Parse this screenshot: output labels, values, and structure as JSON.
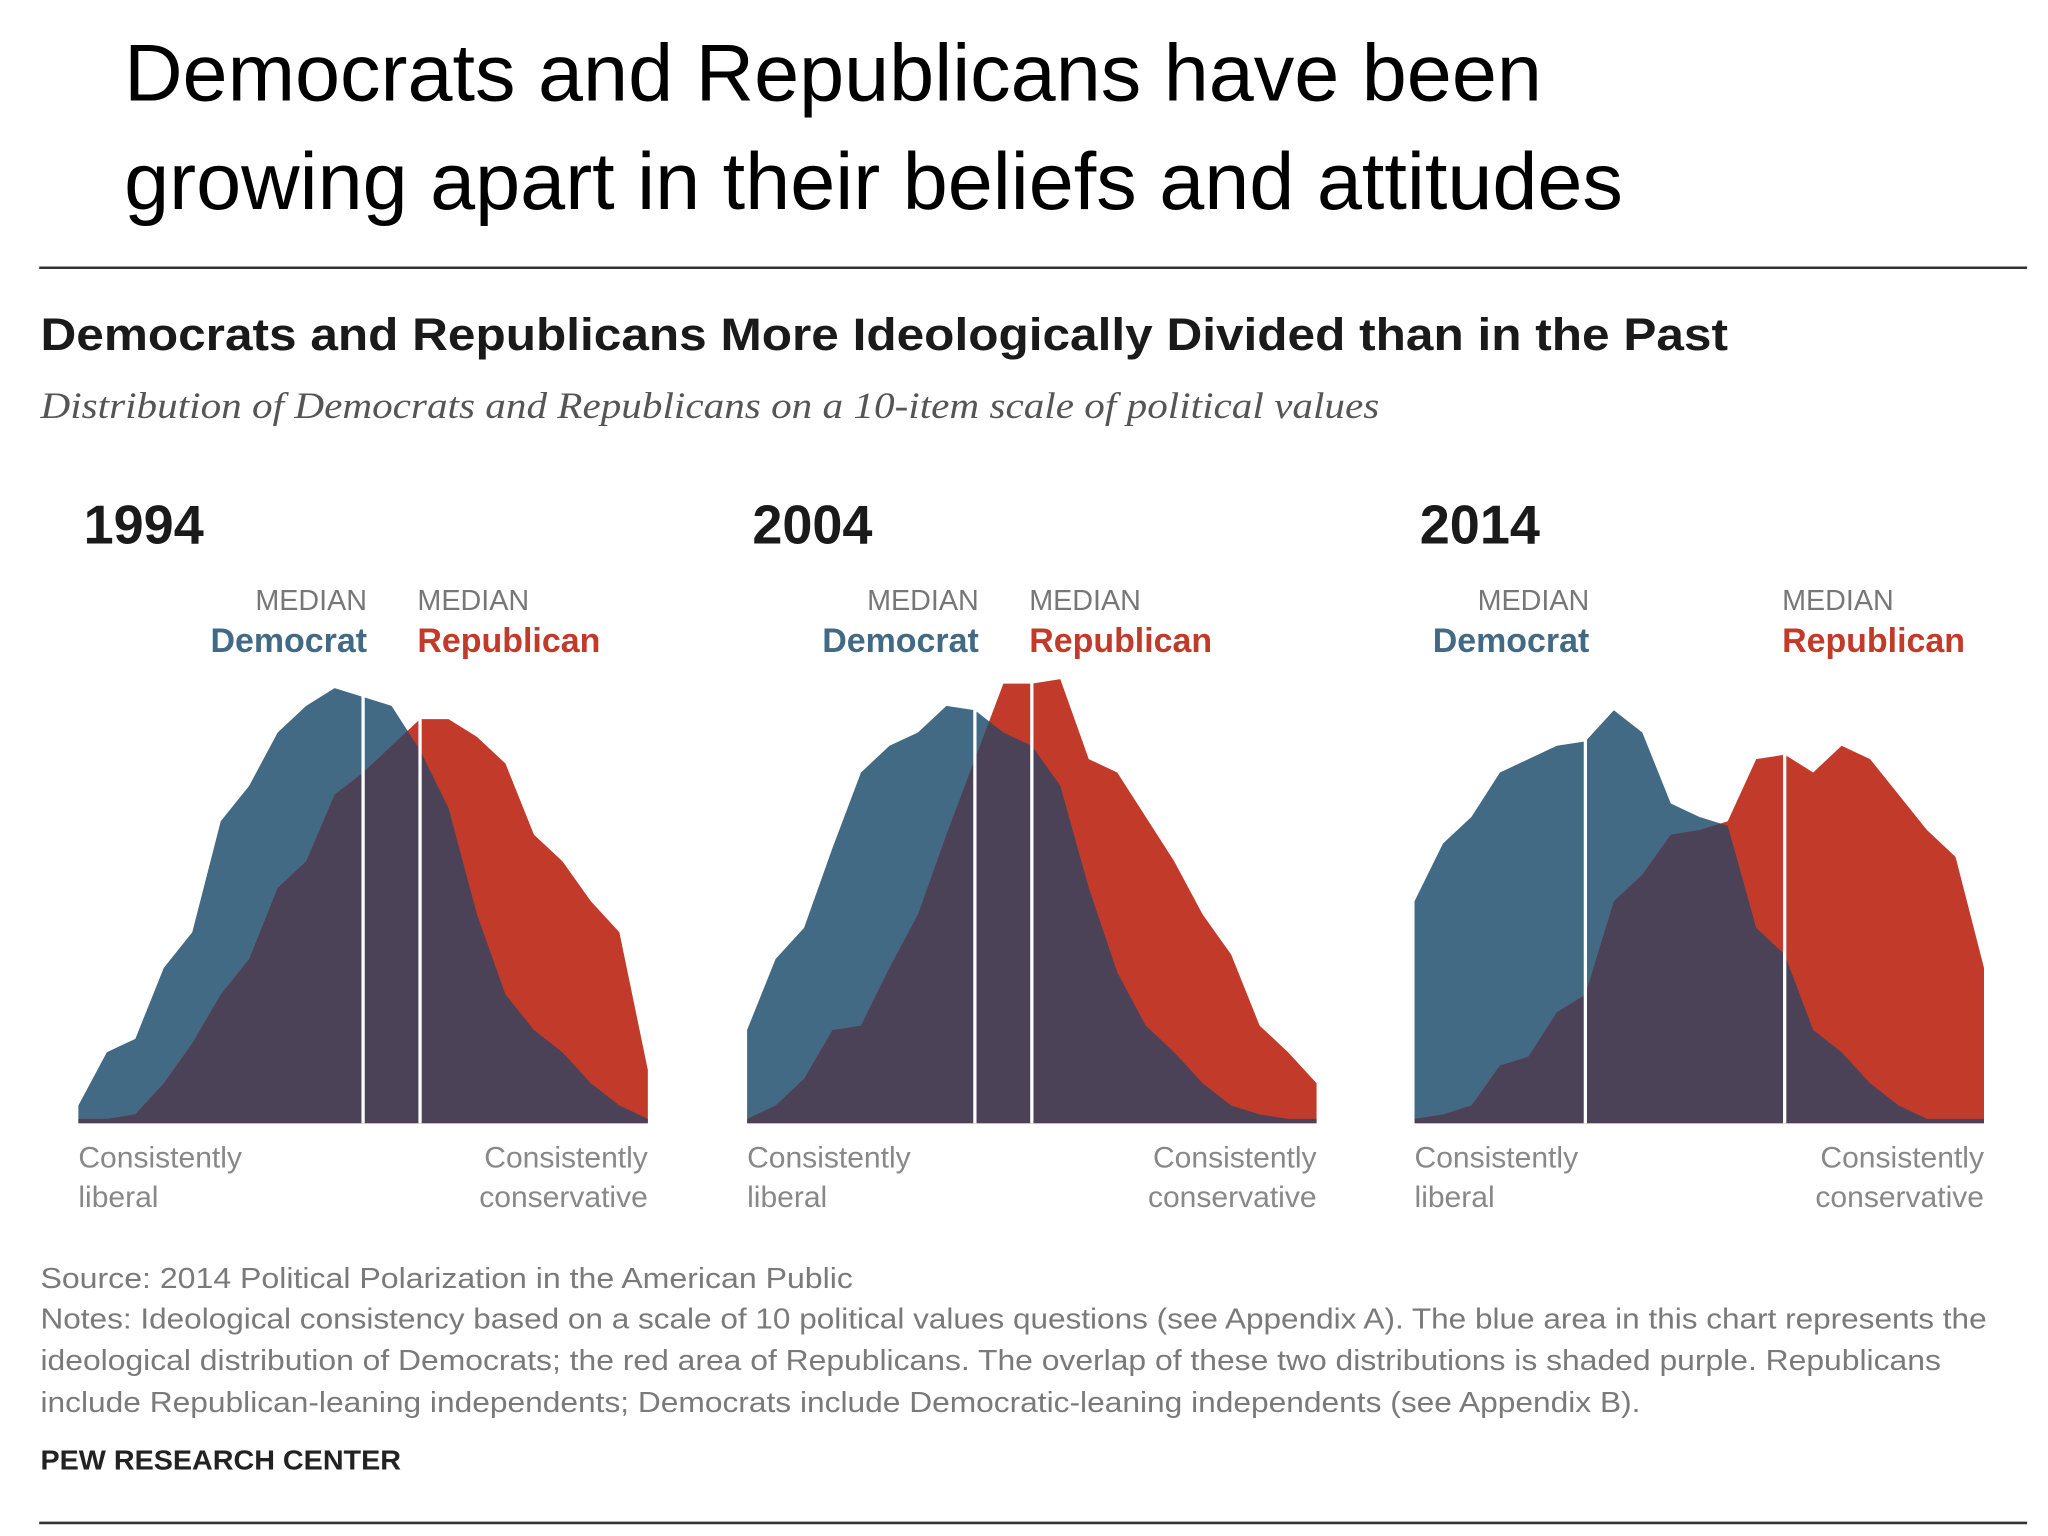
{
  "header": {
    "title": [
      "Democrats and Republicans have been",
      "growing apart in their beliefs and attitudes"
    ],
    "chart_title": "Democrats and Republicans More Ideologically Divided than in the Past",
    "subtitle": "Distribution of Democrats and Republicans on a 10-item scale of political values",
    "source": "Source: 2014 Political Polarization in the American Public",
    "notes": [
      "Notes: Ideological consistency based on a scale of 10 political values questions (see Appendix A). The blue area in this chart represents the",
      "ideological distribution of Democrats; the red area of Republicans. The overlap of these two distributions is shaded purple. Republicans",
      "include Republican-leaning independents; Democrats include Democratic-leaning independents (see Appendix B)."
    ],
    "credit": "PEW RESEARCH CENTER"
  },
  "chart_data": [
    {
      "type": "area",
      "title": "1994",
      "x": [
        -10,
        -9,
        -8,
        -7,
        -6,
        -5,
        -4,
        -3,
        -2,
        -1,
        0,
        1,
        2,
        3,
        4,
        5,
        6,
        7,
        8,
        9,
        10
      ],
      "xlim": [
        -10,
        10
      ],
      "ylim": [
        0,
        10
      ],
      "xlabel_left": [
        "Consistently",
        "liberal"
      ],
      "xlabel_right": [
        "Consistently",
        "conservative"
      ],
      "median_label": "MEDIAN",
      "overlap_color": "#4b4258",
      "series": [
        {
          "name": "Democrat",
          "color": "#436a85",
          "median": 0,
          "values": [
            0.4,
            1.6,
            1.9,
            3.5,
            4.3,
            6.8,
            7.6,
            8.8,
            9.4,
            9.8,
            9.6,
            9.4,
            8.4,
            7.1,
            4.7,
            2.9,
            2.1,
            1.6,
            0.9,
            0.4,
            0.1
          ]
        },
        {
          "name": "Republican",
          "color": "#c23b2a",
          "median": 2,
          "values": [
            0.1,
            0.1,
            0.2,
            0.9,
            1.8,
            2.9,
            3.7,
            5.3,
            5.9,
            7.4,
            7.9,
            8.5,
            9.1,
            9.1,
            8.7,
            8.1,
            6.5,
            5.9,
            5.0,
            4.3,
            1.2
          ]
        }
      ]
    },
    {
      "type": "area",
      "title": "2004",
      "x": [
        -10,
        -9,
        -8,
        -7,
        -6,
        -5,
        -4,
        -3,
        -2,
        -1,
        0,
        1,
        2,
        3,
        4,
        5,
        6,
        7,
        8,
        9,
        10
      ],
      "xlim": [
        -10,
        10
      ],
      "ylim": [
        0,
        10
      ],
      "xlabel_left": [
        "Consistently",
        "liberal"
      ],
      "xlabel_right": [
        "Consistently",
        "conservative"
      ],
      "median_label": "MEDIAN",
      "overlap_color": "#4b4258",
      "series": [
        {
          "name": "Democrat",
          "color": "#436a85",
          "median": -2,
          "values": [
            2.1,
            3.7,
            4.4,
            6.2,
            7.9,
            8.5,
            8.8,
            9.4,
            9.3,
            8.8,
            8.5,
            7.6,
            5.3,
            3.4,
            2.2,
            1.6,
            0.9,
            0.4,
            0.2,
            0.1,
            0.1
          ]
        },
        {
          "name": "Republican",
          "color": "#c23b2a",
          "median": 0,
          "values": [
            0.1,
            0.4,
            1.0,
            2.1,
            2.2,
            3.5,
            4.7,
            6.5,
            8.2,
            9.9,
            9.9,
            10.0,
            8.2,
            7.9,
            6.9,
            5.9,
            4.7,
            3.8,
            2.2,
            1.6,
            0.9
          ]
        }
      ]
    },
    {
      "type": "area",
      "title": "2014",
      "x": [
        -10,
        -9,
        -8,
        -7,
        -6,
        -5,
        -4,
        -3,
        -2,
        -1,
        0,
        1,
        2,
        3,
        4,
        5,
        6,
        7,
        8,
        9,
        10
      ],
      "xlim": [
        -10,
        10
      ],
      "ylim": [
        0,
        10
      ],
      "xlabel_left": [
        "Consistently",
        "liberal"
      ],
      "xlabel_right": [
        "Consistently",
        "conservative"
      ],
      "median_label": "MEDIAN",
      "overlap_color": "#4b4258",
      "series": [
        {
          "name": "Democrat",
          "color": "#436a85",
          "median": -4,
          "values": [
            5.0,
            6.3,
            6.9,
            7.9,
            8.2,
            8.5,
            8.6,
            9.3,
            8.8,
            7.2,
            6.9,
            6.7,
            4.4,
            3.8,
            2.1,
            1.6,
            0.9,
            0.4,
            0.1,
            0.1,
            0.1
          ]
        },
        {
          "name": "Republican",
          "color": "#c23b2a",
          "median": 3,
          "values": [
            0.1,
            0.2,
            0.4,
            1.3,
            1.5,
            2.5,
            2.9,
            5.0,
            5.6,
            6.5,
            6.6,
            6.8,
            8.2,
            8.3,
            7.9,
            8.5,
            8.2,
            7.4,
            6.6,
            6.0,
            3.5
          ]
        }
      ]
    }
  ]
}
